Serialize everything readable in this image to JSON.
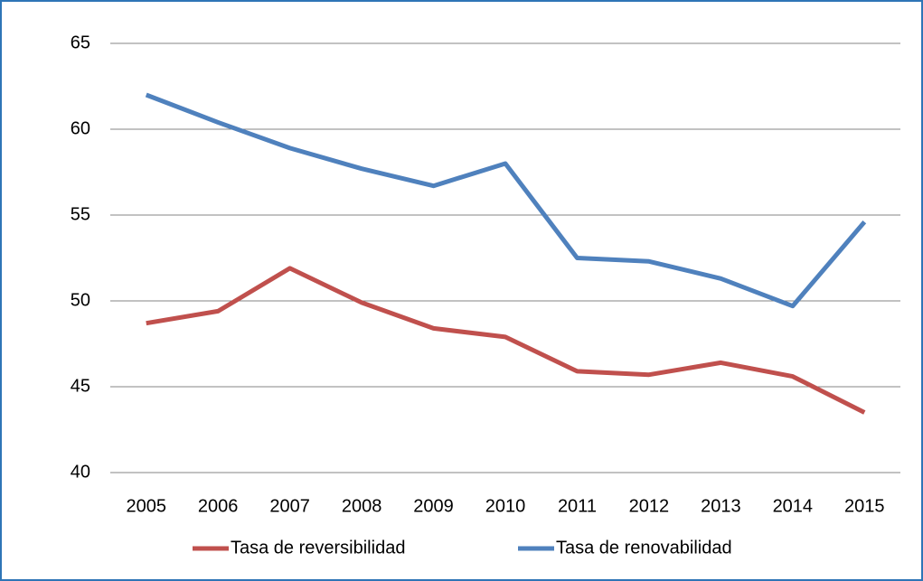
{
  "chart_data": {
    "type": "line",
    "categories": [
      "2005",
      "2006",
      "2007",
      "2008",
      "2009",
      "2010",
      "2011",
      "2012",
      "2013",
      "2014",
      "2015"
    ],
    "series": [
      {
        "name": "Tasa de reversibilidad",
        "color": "#c0504d",
        "values": [
          48.7,
          49.4,
          51.9,
          49.9,
          48.4,
          47.9,
          45.9,
          45.7,
          46.4,
          45.6,
          43.5
        ]
      },
      {
        "name": "Tasa de renovabilidad",
        "color": "#4f81bd",
        "values": [
          62.0,
          60.4,
          58.9,
          57.7,
          56.7,
          58.0,
          52.5,
          52.3,
          51.3,
          49.7,
          54.6
        ]
      }
    ],
    "ylim": [
      40,
      65
    ],
    "yticks": [
      40,
      45,
      50,
      55,
      60,
      65
    ],
    "grid": true,
    "legend": "bottom"
  }
}
